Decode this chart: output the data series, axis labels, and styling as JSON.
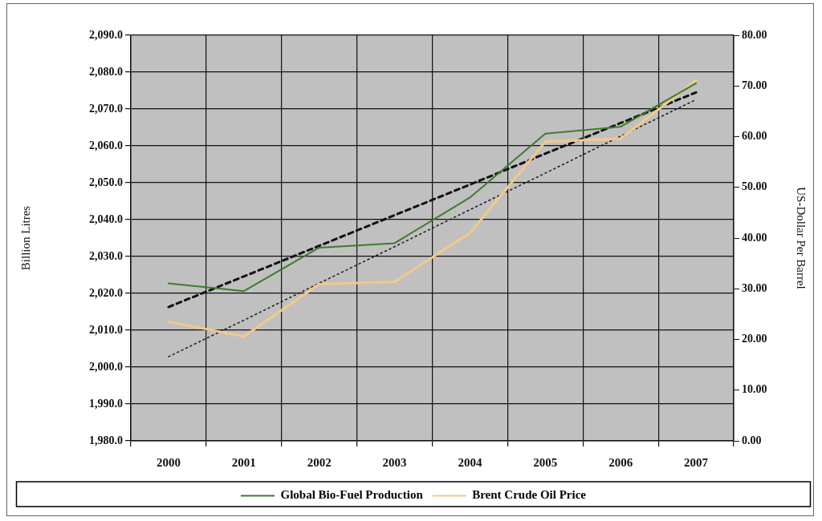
{
  "chart_data": {
    "type": "line",
    "xlabel": null,
    "ylabel": "Billion Litres",
    "y2label": "US-Dollar Per Barrel",
    "categories": [
      "2000",
      "2001",
      "2002",
      "2003",
      "2004",
      "2005",
      "2006",
      "2007"
    ],
    "series": [
      {
        "name": "Global Bio-Fuel Production",
        "color": "#3f7a2e",
        "values": [
          2022.7,
          2020.6,
          2032.4,
          2033.6,
          2046.0,
          2063.3,
          2065.2,
          2077.0
        ]
      },
      {
        "name": "Brent Crude Oil Price",
        "color": "#f2c98a",
        "axis": "y2",
        "values": [
          23.5,
          20.6,
          30.9,
          31.4,
          41.0,
          59.0,
          59.6,
          71.1
        ]
      },
      {
        "type": "line",
        "color": "#111111",
        "line_style": "dashed",
        "values": [
          2016.3,
          2024.6,
          2032.9,
          2041.2,
          2049.5,
          2057.9,
          2066.2,
          2074.5
        ]
      },
      {
        "type": "line",
        "color": "#222222",
        "line_style": "dotted",
        "axis": "y2",
        "values": [
          16.6,
          23.8,
          31.1,
          38.3,
          45.6,
          52.8,
          60.1,
          67.3
        ]
      }
    ],
    "ylim": [
      1980,
      2090
    ],
    "yticks": [
      {
        "value": 1980,
        "label": "1,980.0"
      },
      {
        "value": 1990,
        "label": "1,990.0"
      },
      {
        "value": 2000,
        "label": "2,000.0"
      },
      {
        "value": 2010,
        "label": "2,010.0"
      },
      {
        "value": 2020,
        "label": "2,020.0"
      },
      {
        "value": 2030,
        "label": "2,030.0"
      },
      {
        "value": 2040,
        "label": "2,040.0"
      },
      {
        "value": 2050,
        "label": "2,050.0"
      },
      {
        "value": 2060,
        "label": "2,060.0"
      },
      {
        "value": 2070,
        "label": "2,070.0"
      },
      {
        "value": 2080,
        "label": "2,080.0"
      },
      {
        "value": 2090,
        "label": "2,090.0"
      }
    ],
    "y2lim": [
      0,
      80
    ],
    "y2ticks": [
      {
        "value": 0,
        "label": "0.00"
      },
      {
        "value": 10,
        "label": "10.00"
      },
      {
        "value": 20,
        "label": "20.00"
      },
      {
        "value": 30,
        "label": "30.00"
      },
      {
        "value": 40,
        "label": "40.00"
      },
      {
        "value": 50,
        "label": "50.00"
      },
      {
        "value": 60,
        "label": "60.00"
      },
      {
        "value": 70,
        "label": "70.00"
      },
      {
        "value": 80,
        "label": "80.00"
      }
    ],
    "grid": true,
    "legend": "bottom",
    "marker": "none",
    "line_style": "solid"
  }
}
